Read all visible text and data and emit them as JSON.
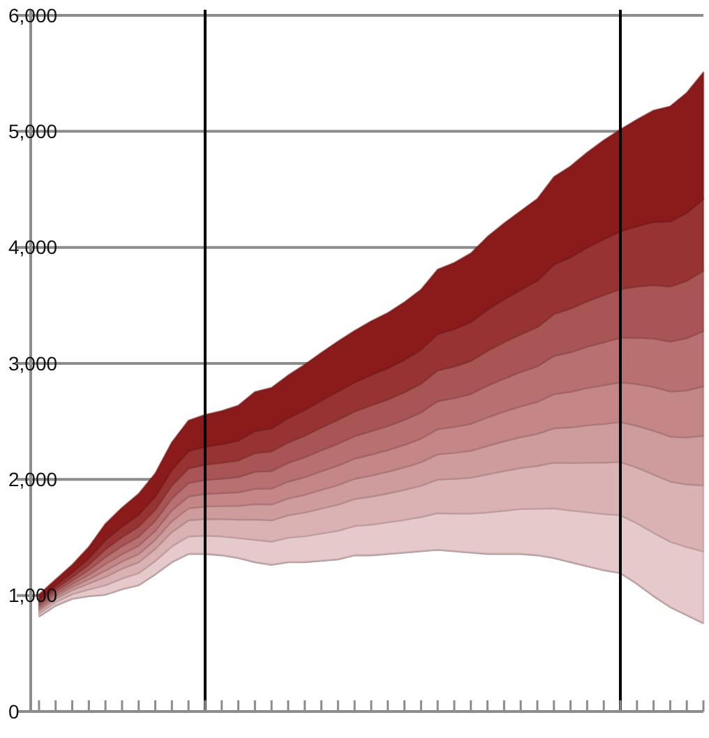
{
  "chart_data": {
    "type": "area",
    "stacked": true,
    "grid": "y",
    "categories": [
      null,
      null,
      null,
      null,
      null,
      null,
      null,
      null,
      null,
      null,
      null,
      null,
      null,
      null,
      null,
      null,
      null,
      null,
      null,
      null,
      null,
      null,
      null,
      null,
      null,
      null,
      null,
      null,
      null,
      null,
      null,
      null,
      null,
      null,
      null,
      null,
      null,
      null,
      null,
      null,
      null
    ],
    "ylim": [
      0,
      6000
    ],
    "yticks": [
      0,
      {
        "value": 1000,
        "label": "1,000"
      },
      {
        "value": 2000,
        "label": "2,000"
      },
      {
        "value": 3000,
        "label": "3,000"
      },
      {
        "value": 4000,
        "label": "4,000"
      },
      {
        "value": 5000,
        "label": "5,000"
      },
      {
        "value": 6000,
        "label": "6,000"
      }
    ],
    "series": [
      {
        "color": "#ffffff",
        "values": [
          820,
          914,
          973,
          996,
          1008,
          1055,
          1090,
          1184,
          1289,
          1360,
          1360,
          1348,
          1324,
          1289,
          1266,
          1289,
          1289,
          1301,
          1313,
          1348,
          1348,
          1360,
          1371,
          1383,
          1395,
          1383,
          1371,
          1360,
          1360,
          1360,
          1348,
          1324,
          1289,
          1254,
          1219,
          1195,
          1102,
          996,
          902,
          832,
          762
        ]
      },
      {
        "color": "#e6c9cb",
        "values": [
          24,
          29,
          38,
          55,
          79,
          91,
          102,
          113,
          134,
          149,
          155,
          161,
          171,
          190,
          198,
          209,
          221,
          233,
          244,
          251,
          262,
          270,
          280,
          293,
          314,
          323,
          335,
          355,
          370,
          384,
          399,
          427,
          443,
          463,
          482,
          497,
          520,
          544,
          561,
          585,
          617
        ]
      },
      {
        "color": "#dbb2b3",
        "values": [
          23,
          27,
          35,
          51,
          73,
          84,
          94,
          104,
          124,
          138,
          144,
          149,
          158,
          176,
          183,
          193,
          204,
          215,
          225,
          232,
          242,
          249,
          259,
          270,
          290,
          298,
          309,
          328,
          342,
          354,
          369,
          394,
          409,
          428,
          444,
          458,
          480,
          502,
          518,
          540,
          570
        ]
      },
      {
        "color": "#cf9c9d",
        "values": [
          17,
          20,
          26,
          38,
          55,
          63,
          71,
          78,
          93,
          103,
          108,
          112,
          118,
          132,
          137,
          145,
          153,
          161,
          169,
          174,
          181,
          187,
          194,
          203,
          217,
          224,
          232,
          246,
          256,
          266,
          276,
          295,
          307,
          321,
          333,
          344,
          360,
          377,
          388,
          405,
          427
        ]
      },
      {
        "color": "#c48687",
        "values": [
          17,
          20,
          26,
          38,
          55,
          63,
          71,
          78,
          93,
          103,
          108,
          112,
          118,
          132,
          137,
          145,
          153,
          161,
          169,
          174,
          181,
          187,
          194,
          203,
          217,
          224,
          232,
          246,
          256,
          266,
          276,
          295,
          307,
          321,
          333,
          344,
          360,
          377,
          388,
          405,
          427
        ]
      },
      {
        "color": "#b87071",
        "values": [
          19,
          22,
          29,
          42,
          61,
          70,
          79,
          87,
          103,
          115,
          120,
          124,
          131,
          147,
          152,
          161,
          170,
          179,
          188,
          193,
          202,
          207,
          216,
          225,
          241,
          248,
          258,
          273,
          285,
          295,
          307,
          328,
          341,
          356,
          370,
          382,
          400,
          418,
          431,
          450,
          475
        ]
      },
      {
        "color": "#a95556",
        "values": [
          21,
          25,
          32,
          46,
          67,
          77,
          86,
          95,
          113,
          126,
          132,
          137,
          144,
          161,
          168,
          177,
          187,
          197,
          206,
          213,
          222,
          228,
          237,
          248,
          266,
          273,
          284,
          300,
          313,
          325,
          338,
          361,
          375,
          392,
          407,
          420,
          440,
          460,
          474,
          495,
          522
        ]
      },
      {
        "color": "#973333",
        "values": [
          24,
          29,
          38,
          55,
          79,
          91,
          102,
          113,
          134,
          149,
          155,
          161,
          171,
          190,
          198,
          209,
          221,
          233,
          244,
          251,
          262,
          270,
          280,
          293,
          314,
          323,
          335,
          355,
          370,
          384,
          399,
          427,
          443,
          463,
          482,
          497,
          520,
          544,
          561,
          585,
          617
        ]
      },
      {
        "color": "#8b1b1b",
        "values": [
          43,
          51,
          67,
          97,
          140,
          162,
          181,
          199,
          237,
          264,
          275,
          286,
          302,
          337,
          351,
          369,
          391,
          412,
          431,
          445,
          464,
          477,
          496,
          518,
          555,
          571,
          593,
          628,
          655,
          679,
          706,
          755,
          785,
          819,
          852,
          879,
          919,
          962,
          992,
          1035,
          1092
        ]
      }
    ]
  }
}
